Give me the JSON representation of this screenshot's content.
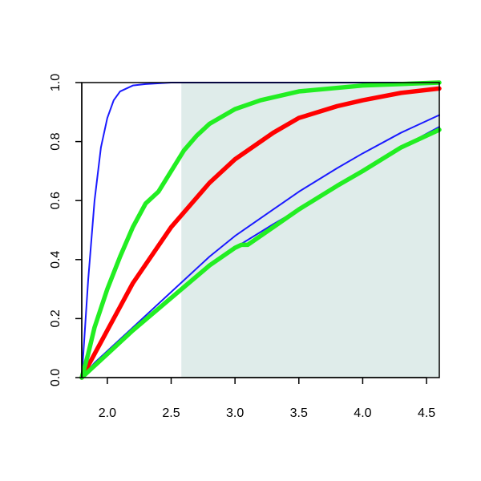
{
  "chart_data": {
    "type": "line",
    "title": "",
    "xlabel": "",
    "ylabel": "",
    "xlim": [
      1.8,
      4.6
    ],
    "ylim": [
      0.0,
      1.0
    ],
    "x_ticks": [
      "2.0",
      "2.5",
      "3.0",
      "3.5",
      "4.0",
      "4.5"
    ],
    "y_ticks": [
      "0.0",
      "0.2",
      "0.4",
      "0.6",
      "0.8",
      "1.0"
    ],
    "shaded_region": {
      "x_from": 2.58,
      "x_to": 4.6,
      "color": "#dfecea"
    },
    "grid": false,
    "legend": "none",
    "series": [
      {
        "color": "#1a1aff",
        "style": "thin",
        "x": [
          1.8,
          1.85,
          1.9,
          1.95,
          2.0,
          2.05,
          2.1,
          2.2,
          2.3,
          2.5,
          3.0,
          3.5,
          4.0,
          4.6
        ],
        "y": [
          0.0,
          0.33,
          0.6,
          0.78,
          0.88,
          0.94,
          0.97,
          0.99,
          0.995,
          1.0,
          1.0,
          1.0,
          1.0,
          1.0
        ]
      },
      {
        "color": "#1a1aff",
        "style": "thin",
        "x": [
          1.8,
          1.9,
          2.0,
          2.2,
          2.5,
          2.8,
          3.0,
          3.3,
          3.5,
          3.8,
          4.0,
          4.3,
          4.6
        ],
        "y": [
          0.0,
          0.05,
          0.09,
          0.17,
          0.29,
          0.41,
          0.48,
          0.57,
          0.63,
          0.71,
          0.76,
          0.83,
          0.89
        ]
      },
      {
        "color": "#1a1aff",
        "style": "thin",
        "x": [
          1.8,
          1.9,
          2.0,
          2.2,
          2.5,
          2.8,
          3.0,
          3.3,
          3.5,
          3.8,
          4.0,
          4.3,
          4.6
        ],
        "y": [
          0.0,
          0.04,
          0.08,
          0.16,
          0.27,
          0.38,
          0.44,
          0.52,
          0.57,
          0.65,
          0.7,
          0.78,
          0.85
        ]
      },
      {
        "color": "#ff0000",
        "style": "thick",
        "x": [
          1.8,
          1.9,
          2.0,
          2.2,
          2.5,
          2.8,
          3.0,
          3.3,
          3.5,
          3.8,
          4.0,
          4.3,
          4.6
        ],
        "y": [
          0.0,
          0.08,
          0.16,
          0.32,
          0.51,
          0.66,
          0.74,
          0.83,
          0.88,
          0.92,
          0.94,
          0.965,
          0.98
        ]
      },
      {
        "color": "#22ee22",
        "style": "thick",
        "x": [
          1.8,
          1.85,
          1.9,
          2.0,
          2.1,
          2.2,
          2.3,
          2.35,
          2.4,
          2.5,
          2.6,
          2.7,
          2.8,
          3.0,
          3.2,
          3.5,
          4.0,
          4.6
        ],
        "y": [
          0.0,
          0.08,
          0.17,
          0.3,
          0.41,
          0.51,
          0.59,
          0.61,
          0.63,
          0.7,
          0.77,
          0.82,
          0.86,
          0.91,
          0.94,
          0.97,
          0.99,
          1.0
        ]
      },
      {
        "color": "#22ee22",
        "style": "thick",
        "x": [
          1.8,
          1.9,
          2.0,
          2.2,
          2.5,
          2.8,
          3.0,
          3.05,
          3.1,
          3.3,
          3.5,
          3.8,
          4.0,
          4.3,
          4.6
        ],
        "y": [
          0.0,
          0.04,
          0.08,
          0.16,
          0.27,
          0.38,
          0.44,
          0.45,
          0.45,
          0.51,
          0.57,
          0.65,
          0.7,
          0.78,
          0.84
        ]
      }
    ]
  }
}
